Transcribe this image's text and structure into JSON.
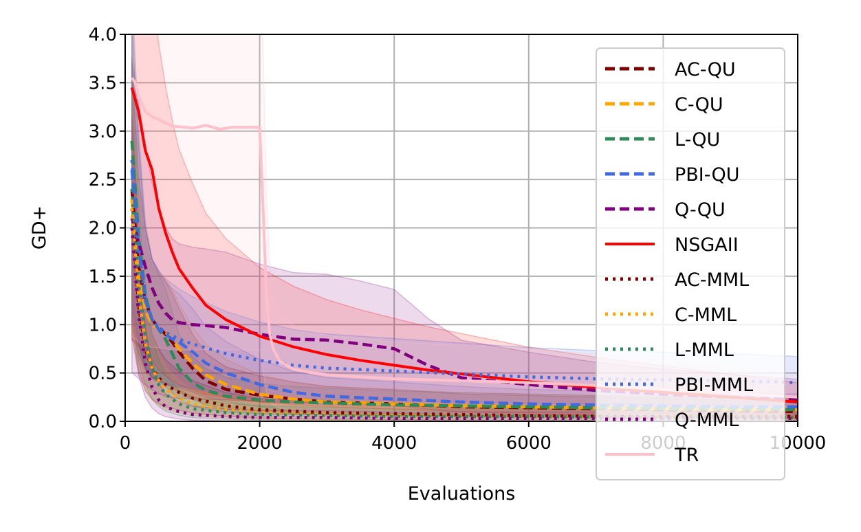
{
  "chart_data": {
    "type": "line",
    "title": "",
    "xlabel": "Evaluations",
    "ylabel": "GD+",
    "xlim": [
      0,
      10000
    ],
    "ylim": [
      0,
      4.0
    ],
    "grid": true,
    "legend_position": "right",
    "xticks": [
      "0",
      "2000",
      "4000",
      "6000",
      "8000",
      "10000"
    ],
    "yticks": [
      "0.0",
      "0.5",
      "1.0",
      "1.5",
      "2.0",
      "2.5",
      "3.0",
      "3.5",
      "4.0"
    ],
    "series": [
      {
        "name": "AC-QU",
        "color": "#800000",
        "style": "dashed",
        "x": [
          100,
          200,
          300,
          400,
          500,
          600,
          700,
          800,
          1000,
          1200,
          1500,
          2000,
          2500,
          3000,
          4000,
          5000,
          6000,
          7000,
          8000,
          9000,
          10000
        ],
        "y": [
          2.4,
          1.6,
          1.25,
          1.05,
          0.97,
          0.9,
          0.82,
          0.72,
          0.55,
          0.42,
          0.33,
          0.27,
          0.23,
          0.2,
          0.18,
          0.15,
          0.14,
          0.13,
          0.12,
          0.11,
          0.1
        ]
      },
      {
        "name": "C-QU",
        "color": "#ffa500",
        "style": "dashed",
        "x": [
          100,
          200,
          300,
          400,
          500,
          600,
          700,
          800,
          1000,
          1200,
          1500,
          2000,
          2500,
          3000,
          4000,
          5000,
          6000,
          7000,
          8000,
          9000,
          10000
        ],
        "y": [
          2.3,
          1.5,
          1.15,
          1.0,
          0.95,
          0.92,
          0.85,
          0.75,
          0.6,
          0.48,
          0.38,
          0.28,
          0.23,
          0.2,
          0.18,
          0.16,
          0.15,
          0.14,
          0.13,
          0.12,
          0.12
        ]
      },
      {
        "name": "L-QU",
        "color": "#2e8b57",
        "style": "dashed",
        "x": [
          100,
          200,
          300,
          400,
          500,
          600,
          700,
          800,
          1000,
          1200,
          1500,
          2000,
          2500,
          3000,
          4000,
          5000,
          6000,
          7000,
          8000,
          9000,
          10000
        ],
        "y": [
          2.9,
          1.9,
          1.3,
          1.05,
          0.95,
          0.85,
          0.7,
          0.55,
          0.4,
          0.32,
          0.26,
          0.22,
          0.2,
          0.19,
          0.17,
          0.16,
          0.15,
          0.14,
          0.13,
          0.13,
          0.12
        ]
      },
      {
        "name": "PBI-QU",
        "color": "#4169e1",
        "style": "dashed",
        "x": [
          100,
          200,
          300,
          400,
          500,
          600,
          700,
          800,
          1000,
          1200,
          1500,
          2000,
          2500,
          3000,
          4000,
          5000,
          6000,
          7000,
          8000,
          9000,
          10000
        ],
        "y": [
          2.6,
          1.8,
          1.25,
          1.05,
          0.95,
          0.9,
          0.85,
          0.82,
          0.72,
          0.6,
          0.5,
          0.38,
          0.3,
          0.26,
          0.23,
          0.2,
          0.18,
          0.17,
          0.16,
          0.15,
          0.15
        ]
      },
      {
        "name": "Q-QU",
        "color": "#800080",
        "style": "dashed",
        "x": [
          100,
          200,
          300,
          400,
          500,
          600,
          700,
          800,
          1000,
          1200,
          1500,
          2000,
          2500,
          3000,
          3500,
          4000,
          4500,
          5000,
          6000,
          7000,
          8000,
          9000,
          10000
        ],
        "y": [
          2.1,
          1.85,
          1.6,
          1.38,
          1.22,
          1.12,
          1.05,
          1.02,
          1.0,
          0.99,
          0.97,
          0.9,
          0.85,
          0.84,
          0.8,
          0.75,
          0.58,
          0.45,
          0.38,
          0.32,
          0.28,
          0.25,
          0.22
        ]
      },
      {
        "name": "NSGAII",
        "color": "#ff0000",
        "style": "solid",
        "x": [
          100,
          200,
          300,
          400,
          500,
          600,
          700,
          800,
          1000,
          1200,
          1500,
          2000,
          2500,
          3000,
          3500,
          4000,
          4500,
          5000,
          6000,
          7000,
          8000,
          9000,
          10000
        ],
        "y": [
          3.45,
          3.2,
          2.8,
          2.6,
          2.2,
          1.95,
          1.75,
          1.58,
          1.38,
          1.2,
          1.05,
          0.88,
          0.77,
          0.69,
          0.63,
          0.58,
          0.53,
          0.49,
          0.41,
          0.35,
          0.3,
          0.25,
          0.2
        ]
      },
      {
        "name": "AC-MML",
        "color": "#800000",
        "style": "dotted",
        "x": [
          100,
          200,
          300,
          400,
          500,
          600,
          800,
          1000,
          1500,
          2000,
          3000,
          4000,
          6000,
          8000,
          10000
        ],
        "y": [
          2.2,
          1.2,
          0.75,
          0.55,
          0.45,
          0.38,
          0.3,
          0.24,
          0.16,
          0.12,
          0.09,
          0.08,
          0.06,
          0.05,
          0.05
        ]
      },
      {
        "name": "C-MML",
        "color": "#ffa500",
        "style": "dotted",
        "x": [
          100,
          200,
          300,
          400,
          500,
          600,
          800,
          1000,
          1500,
          2000,
          3000,
          4000,
          6000,
          8000,
          10000
        ],
        "y": [
          2.2,
          1.3,
          0.8,
          0.55,
          0.42,
          0.33,
          0.24,
          0.18,
          0.12,
          0.09,
          0.07,
          0.06,
          0.05,
          0.04,
          0.04
        ]
      },
      {
        "name": "L-MML",
        "color": "#2e8b57",
        "style": "dotted",
        "x": [
          100,
          200,
          300,
          400,
          500,
          600,
          800,
          1000,
          1500,
          2000,
          3000,
          4000,
          6000,
          8000,
          10000
        ],
        "y": [
          2.4,
          1.4,
          0.9,
          0.55,
          0.38,
          0.28,
          0.18,
          0.13,
          0.09,
          0.07,
          0.06,
          0.05,
          0.05,
          0.04,
          0.04
        ]
      },
      {
        "name": "PBI-MML",
        "color": "#4169e1",
        "style": "dotted",
        "x": [
          100,
          200,
          300,
          400,
          500,
          600,
          800,
          1000,
          1500,
          2000,
          2500,
          3000,
          4000,
          5000,
          6000,
          7000,
          8000,
          9000,
          10000
        ],
        "y": [
          2.7,
          1.8,
          1.25,
          1.05,
          0.97,
          0.92,
          0.85,
          0.8,
          0.7,
          0.63,
          0.58,
          0.55,
          0.52,
          0.49,
          0.46,
          0.44,
          0.43,
          0.42,
          0.4
        ]
      },
      {
        "name": "Q-MML",
        "color": "#800080",
        "style": "dotted",
        "x": [
          100,
          200,
          300,
          400,
          500,
          600,
          800,
          1000,
          1500,
          2000,
          3000,
          4000,
          6000,
          8000,
          10000
        ],
        "y": [
          2.0,
          1.1,
          0.6,
          0.35,
          0.22,
          0.15,
          0.1,
          0.07,
          0.05,
          0.04,
          0.04,
          0.03,
          0.03,
          0.03,
          0.03
        ]
      },
      {
        "name": "TR",
        "color": "#ffc0cb",
        "style": "solid",
        "x": [
          100,
          150,
          200,
          300,
          400,
          500,
          700,
          900,
          1000,
          1200,
          1400,
          1600,
          1800,
          2000,
          2050,
          2100,
          2150,
          2200,
          2300,
          2500,
          2800,
          3000,
          3500,
          4000,
          5000,
          6000,
          7000,
          8000,
          9000,
          10000
        ],
        "y": [
          3.55,
          3.5,
          3.35,
          3.2,
          3.15,
          3.12,
          3.05,
          3.04,
          3.03,
          3.06,
          3.02,
          3.04,
          3.04,
          3.04,
          2.2,
          1.3,
          0.9,
          0.75,
          0.62,
          0.54,
          0.5,
          0.48,
          0.46,
          0.44,
          0.42,
          0.4,
          0.37,
          0.33,
          0.29,
          0.25
        ]
      }
    ]
  }
}
